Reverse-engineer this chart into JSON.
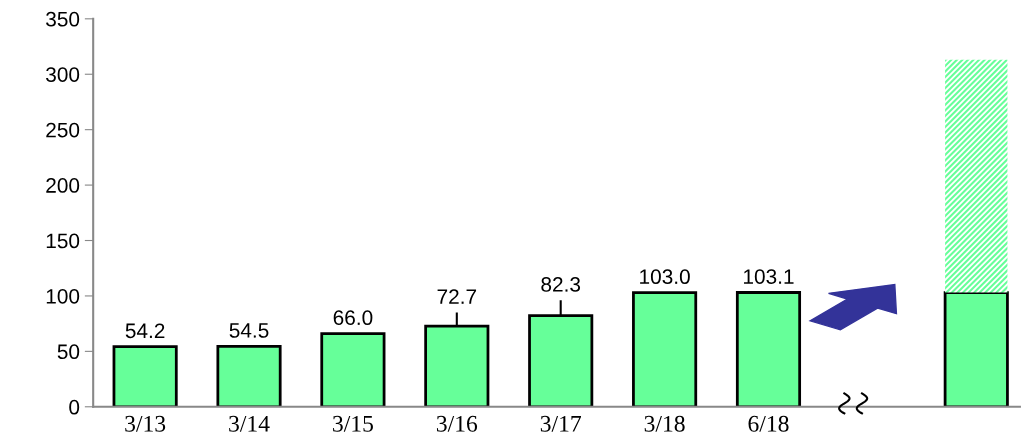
{
  "chart_data": {
    "type": "bar",
    "stacked": true,
    "categories": [
      "3/13",
      "3/14",
      "3/15",
      "3/16",
      "3/17",
      "3/18",
      "6/18",
      null,
      null
    ],
    "series": [
      {
        "color": "#66ff99",
        "values": [
          54.2,
          54.5,
          66.0,
          72.7,
          82.3,
          103.0,
          103.1,
          null,
          103
        ],
        "value_labels": [
          "54.2",
          "54.5",
          "66.0",
          "72.7",
          "82.3",
          "103.0",
          "103.1",
          null,
          null
        ],
        "errors": [
          null,
          null,
          null,
          [
            72.7,
            85
          ],
          [
            82.3,
            96
          ],
          null,
          null,
          null,
          null
        ]
      },
      {
        "color": "#66ff99",
        "values": [
          null,
          null,
          null,
          null,
          null,
          null,
          null,
          null,
          210
        ]
      }
    ],
    "ylim": [
      0,
      350
    ],
    "yticks": [
      0,
      50,
      100,
      150,
      200,
      250,
      300,
      350
    ],
    "grid": false,
    "legend": false
  }
}
